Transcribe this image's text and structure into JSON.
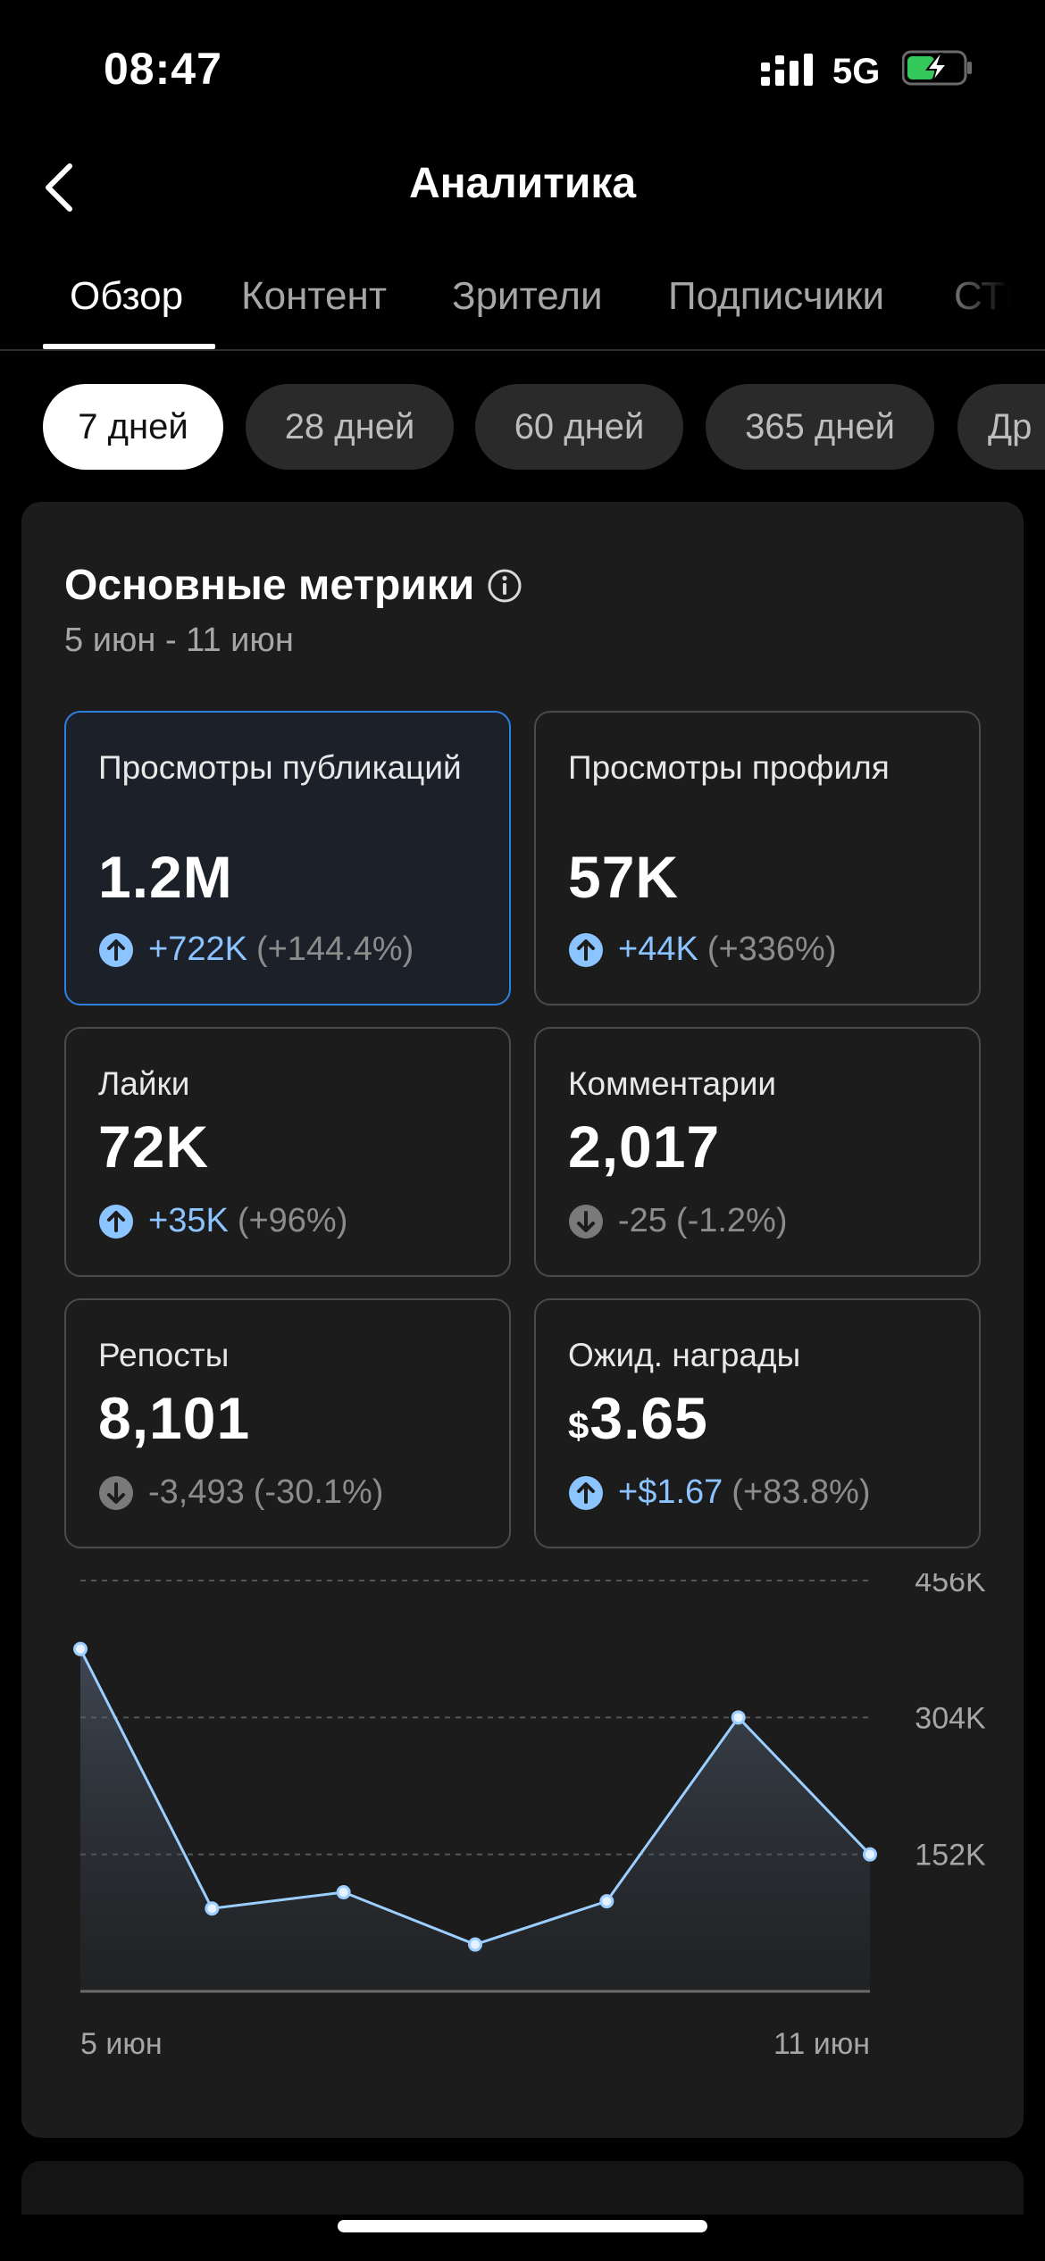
{
  "status_bar": {
    "time": "08:47",
    "network": "5G",
    "battery_color": "#34c759"
  },
  "header": {
    "title": "Аналитика"
  },
  "tabs": [
    {
      "label": "Обзор",
      "active": true
    },
    {
      "label": "Контент"
    },
    {
      "label": "Зрители"
    },
    {
      "label": "Подписчики"
    },
    {
      "label": "СТРИ"
    }
  ],
  "periods": [
    {
      "label": "7 дней",
      "active": true
    },
    {
      "label": "28 дней"
    },
    {
      "label": "60 дней"
    },
    {
      "label": "365 дней"
    },
    {
      "label": "Др"
    }
  ],
  "key_metrics": {
    "title": "Основные метрики",
    "date_range": "5 июн - 11 июн",
    "cards": [
      {
        "label": "Просмотры публикаций",
        "value": "1.2M",
        "change": "+722K",
        "change_pct": "(+144.4%)",
        "direction": "up",
        "selected": true
      },
      {
        "label": "Просмотры профиля",
        "value": "57K",
        "change": "+44K",
        "change_pct": "(+336%)",
        "direction": "up"
      },
      {
        "label": "Лайки",
        "value": "72K",
        "change": "+35K",
        "change_pct": "(+96%)",
        "direction": "up"
      },
      {
        "label": "Комментарии",
        "value": "2,017",
        "change": "-25",
        "change_pct": "(-1.2%)",
        "direction": "down"
      },
      {
        "label": "Репосты",
        "value": "8,101",
        "change": "-3,493",
        "change_pct": "(-30.1%)",
        "direction": "down"
      },
      {
        "label": "Ожид. награды",
        "currency": "$",
        "value": "3.65",
        "change": "+$1.67",
        "change_pct": "(+83.8%)",
        "direction": "up"
      }
    ]
  },
  "chart_data": {
    "type": "area",
    "x": [
      "5 июн",
      "6 июн",
      "7 июн",
      "8 июн",
      "9 июн",
      "10 июн",
      "11 июн"
    ],
    "x_tick_labels": [
      "5 июн",
      "11 июн"
    ],
    "values": [
      380000,
      92000,
      110000,
      52000,
      100000,
      304000,
      152000
    ],
    "y_ticks": [
      152000,
      304000,
      456000
    ],
    "y_tick_labels": [
      "152K",
      "304K",
      "456K"
    ],
    "ylim": [
      0,
      456000
    ],
    "grid": true,
    "line_color": "#9ccfff"
  }
}
